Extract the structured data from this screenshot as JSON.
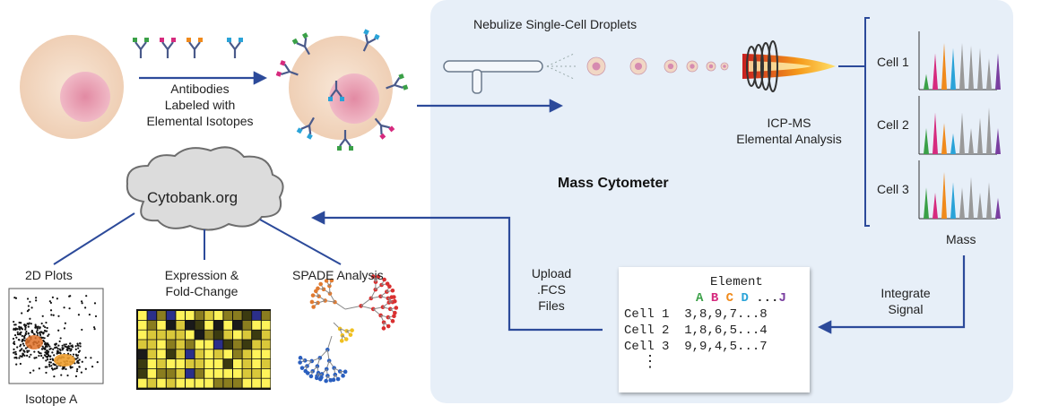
{
  "labels": {
    "nebulize": "Nebulize Single-Cell Droplets",
    "antibodies": [
      "Antibodies",
      "Labeled with",
      "Elemental Isotopes"
    ],
    "icpms": [
      "ICP-MS",
      "Elemental Analysis"
    ],
    "mass_cytometer": "Mass Cytometer",
    "cytobank": "Cytobank.org",
    "plots_2d": "2D Plots",
    "expression": [
      "Expression &",
      "Fold-Change"
    ],
    "spade": "SPADE Analysis",
    "isotope_a": "Isotope A",
    "upload": [
      "Upload",
      ".FCS",
      "Files"
    ],
    "integrate": [
      "Integrate",
      "Signal"
    ],
    "mass": "Mass",
    "cells": [
      "Cell 1",
      "Cell 2",
      "Cell 3"
    ]
  },
  "table": {
    "header": "Element",
    "columns": [
      "A",
      "B",
      "C",
      "D",
      "...",
      "J"
    ],
    "column_colors": [
      "#3aa047",
      "#d62a7e",
      "#f08a1c",
      "#2aa3d8",
      "#222222",
      "#7a3fa0"
    ],
    "rows": [
      {
        "label": "Cell 1",
        "values": "3,8,9,7...8"
      },
      {
        "label": "Cell 2",
        "values": "1,8,6,5...4"
      },
      {
        "label": "Cell 3",
        "values": "9,9,4,5...7"
      }
    ],
    "continuation": "⋮"
  },
  "colors": {
    "arrow": "#2c4a9a",
    "cytometer_bg": "#e7eff8",
    "cell_body": "#f4ddc8",
    "nucleus": "#e8a3b6"
  }
}
